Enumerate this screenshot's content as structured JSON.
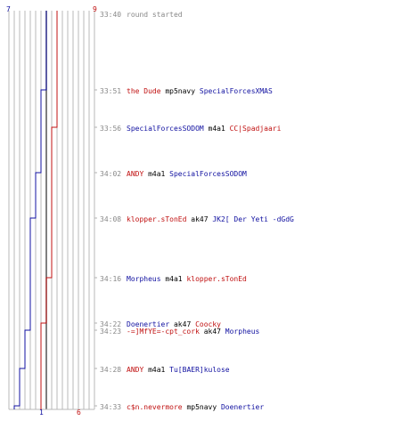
{
  "colors": {
    "blue": "#1010a0",
    "red": "#c01010",
    "gray": "#888888",
    "grid": "#b8b8b8",
    "divider": "#555555",
    "dash": "#b0b0b0"
  },
  "score": {
    "blue_start": "7",
    "red_start": "9",
    "blue_end": "1",
    "red_end": "6"
  },
  "start_event": {
    "time": "33:40",
    "text": "round started"
  },
  "events": [
    {
      "time": "33:51",
      "killer": "the Dude",
      "killer_team": "red",
      "weapon": "mp5navy",
      "victim": "SpecialForcesXMAS",
      "victim_team": "blue"
    },
    {
      "time": "33:56",
      "killer": "SpecialForcesSODOM",
      "killer_team": "blue",
      "weapon": "m4a1",
      "victim": "CC|Spadjaari",
      "victim_team": "red"
    },
    {
      "time": "34:02",
      "killer": "ANDY",
      "killer_team": "red",
      "weapon": "m4a1",
      "victim": "SpecialForcesSODOM",
      "victim_team": "blue"
    },
    {
      "time": "34:08",
      "killer": "klopper.sTonEd",
      "killer_team": "red",
      "weapon": "ak47",
      "victim": "JK2[ Der Yeti -dGdG",
      "victim_team": "blue"
    },
    {
      "time": "34:16",
      "killer": "Morpheus",
      "killer_team": "blue",
      "weapon": "m4a1",
      "victim": "klopper.sTonEd",
      "victim_team": "red"
    },
    {
      "time": "34:22",
      "killer": "Doenertier",
      "killer_team": "blue",
      "weapon": "ak47",
      "victim": "Coocky",
      "victim_team": "red"
    },
    {
      "time": "34:23",
      "killer": "-=]MfYE=-cpt_cork",
      "killer_team": "red",
      "weapon": "ak47",
      "victim": "Morpheus",
      "victim_team": "blue"
    },
    {
      "time": "34:28",
      "killer": "ANDY",
      "killer_team": "red",
      "weapon": "m4a1",
      "victim": "Tu[BAER]kulose",
      "victim_team": "blue"
    },
    {
      "time": "34:33",
      "killer": "c$n.nevermore",
      "killer_team": "red",
      "weapon": "mp5navy",
      "victim": "Doenertier",
      "victim_team": "blue"
    }
  ]
}
